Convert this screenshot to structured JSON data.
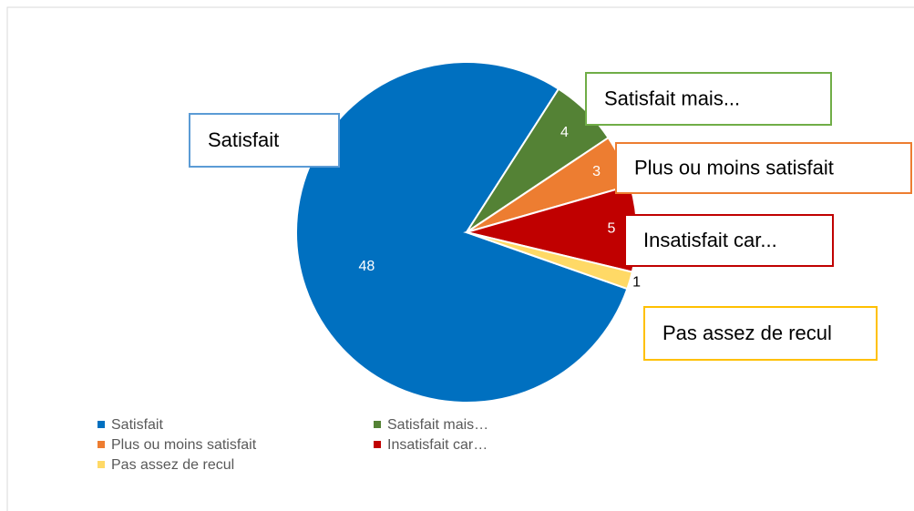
{
  "chart_data": {
    "type": "pie",
    "categories": [
      "Satisfait",
      "Satisfait mais…",
      "Plus ou moins satisfait",
      "Insatisfait car…",
      "Pas assez de recul"
    ],
    "callout_labels": [
      "Satisfait",
      "Satisfait mais...",
      "Plus ou moins satisfait",
      "Insatisfait car...",
      "Pas assez de recul"
    ],
    "values": [
      48,
      4,
      3,
      5,
      1
    ],
    "colors": [
      "#0070c0",
      "#548235",
      "#ed7d31",
      "#c00000",
      "#ffd966"
    ],
    "callout_borders": [
      "#5b9bd5",
      "#70ad47",
      "#ed7d31",
      "#c00000",
      "#ffc000"
    ],
    "legend": "bottom"
  }
}
